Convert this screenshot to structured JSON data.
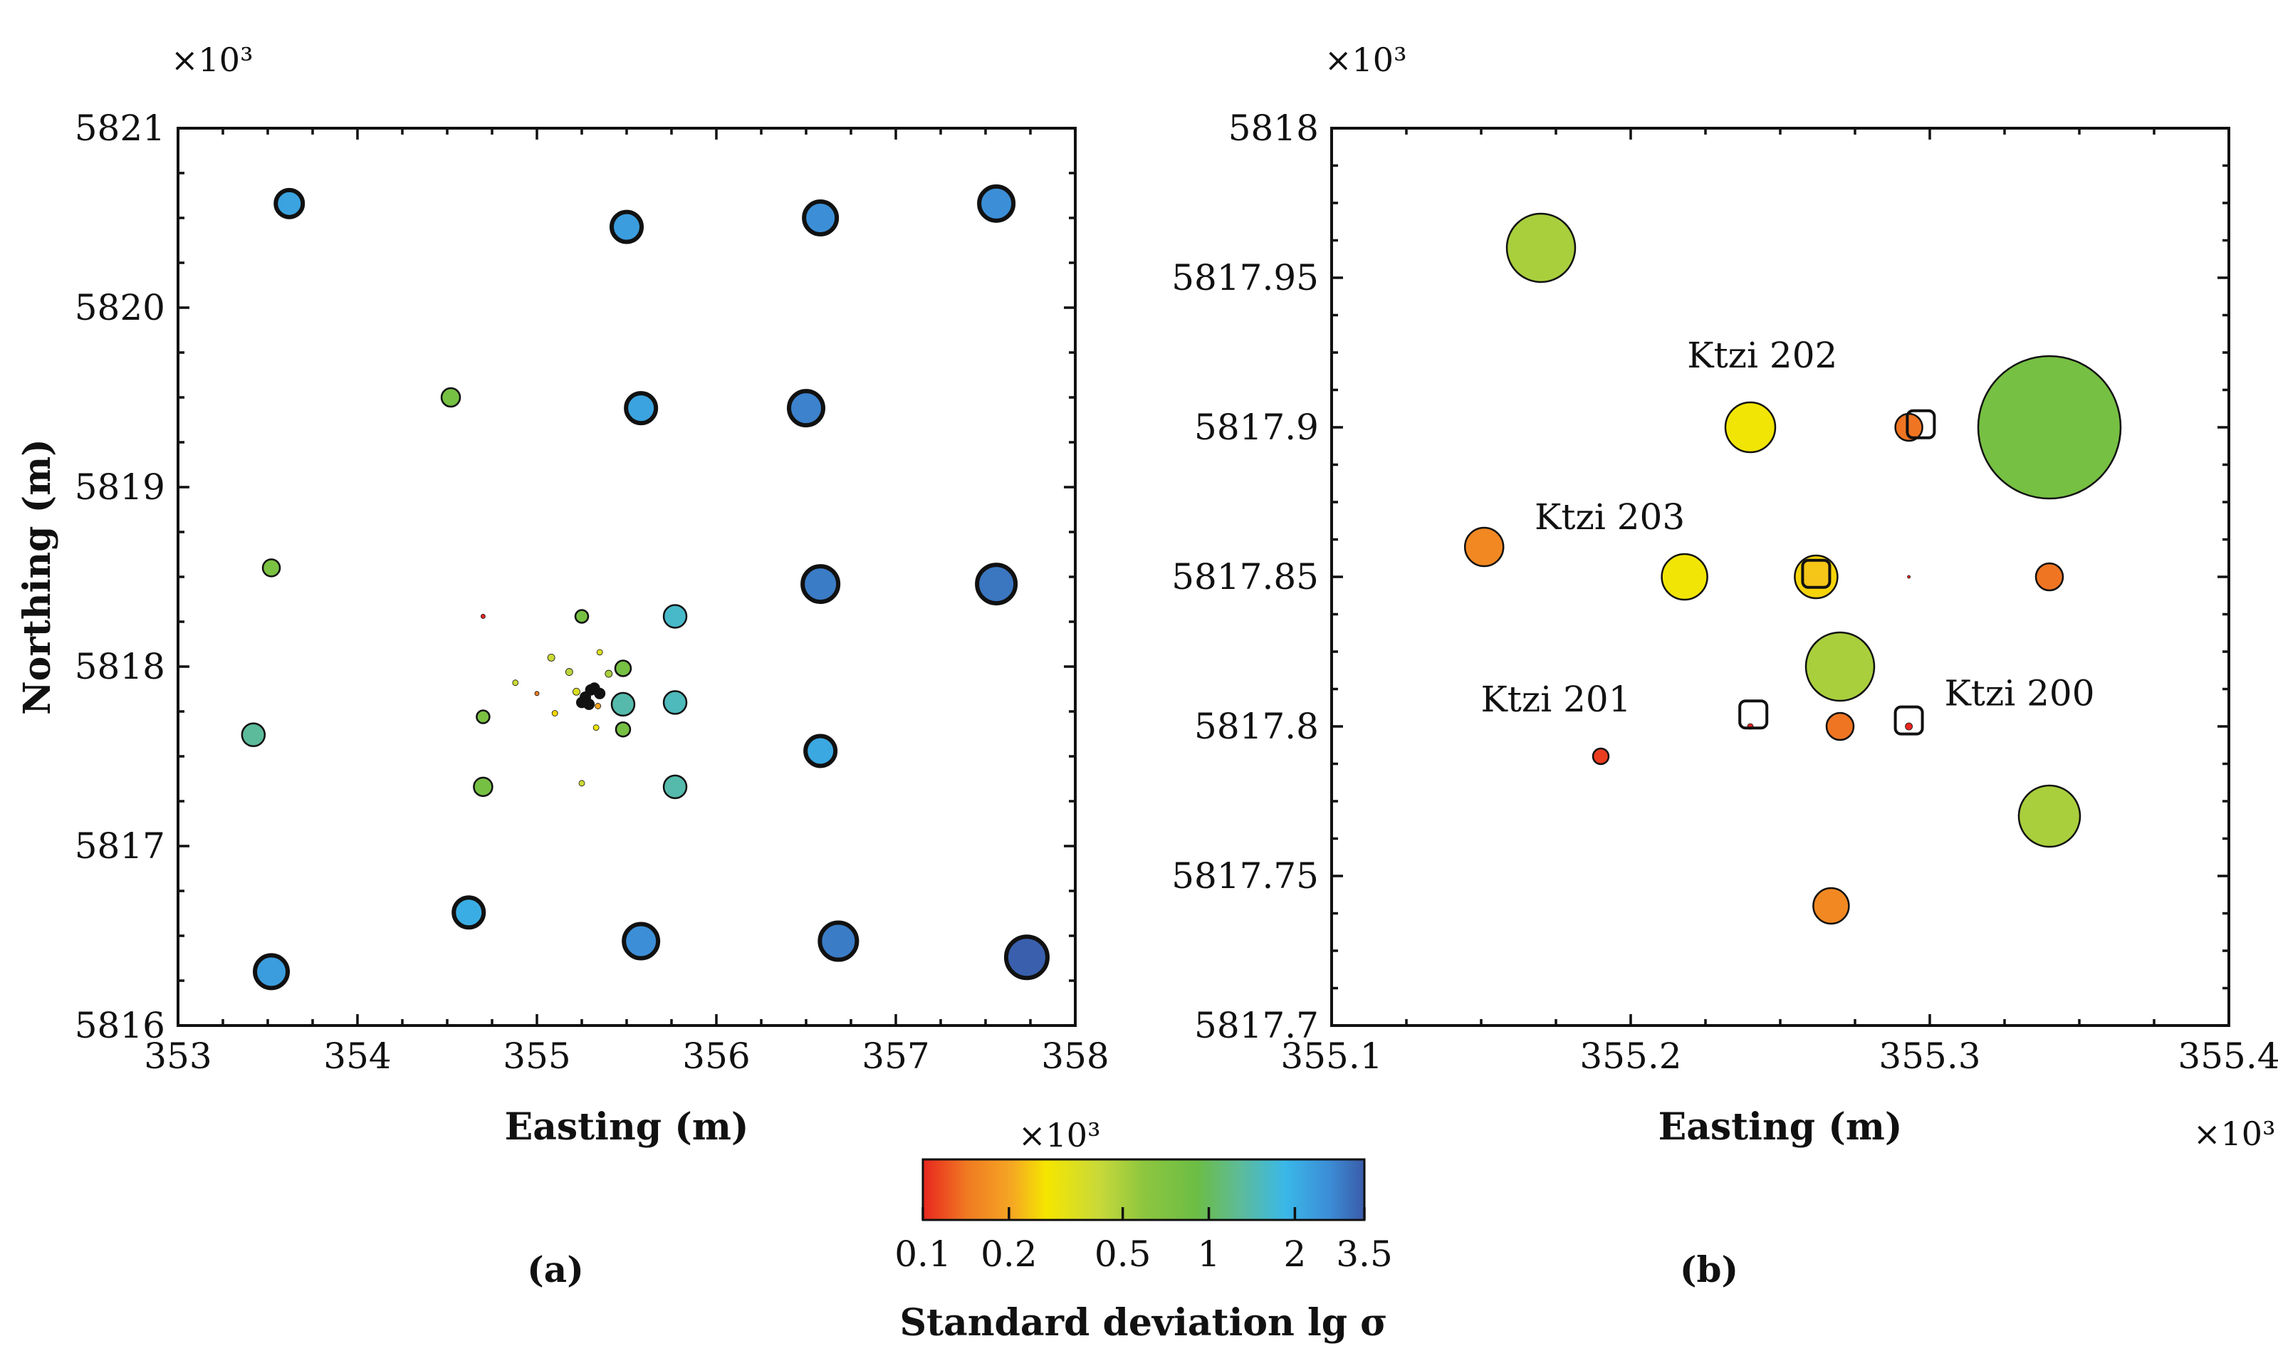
{
  "chart_data": [
    {
      "type": "scatter",
      "panel": "(a)",
      "xlabel": "Easting (m)",
      "ylabel": "Northing (m)",
      "x_multiplier": "×10³",
      "y_multiplier": "×10³",
      "xlim": [
        353,
        358
      ],
      "ylim": [
        5816,
        5821
      ],
      "xticks": [
        353,
        354,
        355,
        356,
        357,
        358
      ],
      "xtick_labels": [
        "353",
        "354",
        "355",
        "356",
        "357",
        "358"
      ],
      "yticks": [
        5816,
        5817,
        5818,
        5819,
        5820,
        5821
      ],
      "ytick_labels": [
        "5816",
        "5817",
        "5818",
        "5819",
        "5820",
        "5821"
      ],
      "points": [
        {
          "x": 353.62,
          "y": 5820.58,
          "sigma": 2.2,
          "r": 19,
          "bold": true
        },
        {
          "x": 355.5,
          "y": 5820.45,
          "sigma": 2.3,
          "r": 21,
          "bold": true
        },
        {
          "x": 356.58,
          "y": 5820.5,
          "sigma": 2.6,
          "r": 23,
          "bold": true
        },
        {
          "x": 357.56,
          "y": 5820.58,
          "sigma": 2.6,
          "r": 24,
          "bold": true
        },
        {
          "x": 354.52,
          "y": 5819.5,
          "sigma": 0.8,
          "r": 13,
          "bold": false
        },
        {
          "x": 355.58,
          "y": 5819.44,
          "sigma": 2.2,
          "r": 21,
          "bold": true
        },
        {
          "x": 356.5,
          "y": 5819.44,
          "sigma": 2.8,
          "r": 24,
          "bold": true
        },
        {
          "x": 353.52,
          "y": 5818.55,
          "sigma": 0.75,
          "r": 12,
          "bold": false
        },
        {
          "x": 356.58,
          "y": 5818.46,
          "sigma": 2.9,
          "r": 25,
          "bold": true
        },
        {
          "x": 357.56,
          "y": 5818.46,
          "sigma": 3.0,
          "r": 27,
          "bold": true
        },
        {
          "x": 355.25,
          "y": 5818.28,
          "sigma": 0.8,
          "r": 9,
          "bold": false
        },
        {
          "x": 355.77,
          "y": 5818.28,
          "sigma": 1.6,
          "r": 16,
          "bold": false
        },
        {
          "x": 355.48,
          "y": 5817.99,
          "sigma": 0.8,
          "r": 11,
          "bold": false
        },
        {
          "x": 355.48,
          "y": 5817.79,
          "sigma": 1.4,
          "r": 16,
          "bold": false
        },
        {
          "x": 355.77,
          "y": 5817.8,
          "sigma": 1.5,
          "r": 16,
          "bold": false
        },
        {
          "x": 355.48,
          "y": 5817.65,
          "sigma": 0.8,
          "r": 10,
          "bold": false
        },
        {
          "x": 354.7,
          "y": 5817.72,
          "sigma": 0.75,
          "r": 9,
          "bold": false
        },
        {
          "x": 353.42,
          "y": 5817.62,
          "sigma": 1.3,
          "r": 16,
          "bold": false
        },
        {
          "x": 354.7,
          "y": 5817.33,
          "sigma": 0.8,
          "r": 13,
          "bold": false
        },
        {
          "x": 355.77,
          "y": 5817.33,
          "sigma": 1.4,
          "r": 16,
          "bold": false
        },
        {
          "x": 356.58,
          "y": 5817.53,
          "sigma": 2.1,
          "r": 21,
          "bold": true
        },
        {
          "x": 354.62,
          "y": 5816.63,
          "sigma": 2.0,
          "r": 21,
          "bold": true
        },
        {
          "x": 355.58,
          "y": 5816.47,
          "sigma": 2.6,
          "r": 24,
          "bold": true
        },
        {
          "x": 356.68,
          "y": 5816.47,
          "sigma": 2.9,
          "r": 26,
          "bold": true
        },
        {
          "x": 357.73,
          "y": 5816.38,
          "sigma": 3.4,
          "r": 29,
          "bold": true
        },
        {
          "x": 353.52,
          "y": 5816.3,
          "sigma": 2.3,
          "r": 23,
          "bold": true
        },
        {
          "x": 355.08,
          "y": 5818.05,
          "sigma": 0.4,
          "r": 5,
          "bold": false
        },
        {
          "x": 355.18,
          "y": 5817.97,
          "sigma": 0.45,
          "r": 5,
          "bold": false
        },
        {
          "x": 355.35,
          "y": 5818.08,
          "sigma": 0.35,
          "r": 4,
          "bold": false
        },
        {
          "x": 354.88,
          "y": 5817.91,
          "sigma": 0.4,
          "r": 4,
          "bold": false
        },
        {
          "x": 355.4,
          "y": 5817.96,
          "sigma": 0.5,
          "r": 5,
          "bold": false
        },
        {
          "x": 355.25,
          "y": 5817.35,
          "sigma": 0.4,
          "r": 4,
          "bold": false
        },
        {
          "x": 355.1,
          "y": 5817.74,
          "sigma": 0.25,
          "r": 4,
          "bold": false
        },
        {
          "x": 355.33,
          "y": 5817.66,
          "sigma": 0.3,
          "r": 4,
          "bold": false
        },
        {
          "x": 355.22,
          "y": 5817.86,
          "sigma": 0.35,
          "r": 5,
          "bold": false
        },
        {
          "x": 355.34,
          "y": 5817.78,
          "sigma": 0.2,
          "r": 4,
          "bold": false
        },
        {
          "x": 354.7,
          "y": 5818.28,
          "sigma": 0.1,
          "r": 3,
          "bold": false
        },
        {
          "x": 355.0,
          "y": 5817.85,
          "sigma": 0.15,
          "r": 3,
          "bold": false
        }
      ],
      "cluster_markers": [
        {
          "x": 355.25,
          "y": 5817.8
        },
        {
          "x": 355.3,
          "y": 5817.87
        },
        {
          "x": 355.32,
          "y": 5817.88
        },
        {
          "x": 355.27,
          "y": 5817.83
        },
        {
          "x": 355.29,
          "y": 5817.79
        },
        {
          "x": 355.35,
          "y": 5817.85
        }
      ]
    },
    {
      "type": "scatter",
      "panel": "(b)",
      "xlabel": "Easting (m)",
      "ylabel": "",
      "x_multiplier": "×10³",
      "y_multiplier": "×10³",
      "xlim": [
        355.1,
        355.4
      ],
      "ylim": [
        5817.7,
        5818
      ],
      "xticks": [
        355.1,
        355.2,
        355.3,
        355.4
      ],
      "xtick_labels": [
        "355.1",
        "355.2",
        "355.3",
        "355.4"
      ],
      "yticks": [
        5817.7,
        5817.75,
        5817.8,
        5817.85,
        5817.9,
        5817.95,
        5818
      ],
      "ytick_labels": [
        "5817.7",
        "5817.75",
        "5817.8",
        "5817.85",
        "5817.9",
        "5817.95",
        "5818"
      ],
      "points": [
        {
          "x": 355.17,
          "y": 5817.96,
          "sigma": 0.5,
          "r": 48
        },
        {
          "x": 355.24,
          "y": 5817.9,
          "sigma": 0.28,
          "r": 35
        },
        {
          "x": 355.293,
          "y": 5817.9,
          "sigma": 0.14,
          "r": 19
        },
        {
          "x": 355.34,
          "y": 5817.9,
          "sigma": 0.8,
          "r": 100
        },
        {
          "x": 355.151,
          "y": 5817.86,
          "sigma": 0.16,
          "r": 27
        },
        {
          "x": 355.218,
          "y": 5817.85,
          "sigma": 0.28,
          "r": 32
        },
        {
          "x": 355.262,
          "y": 5817.85,
          "sigma": 0.25,
          "r": 30
        },
        {
          "x": 355.34,
          "y": 5817.85,
          "sigma": 0.14,
          "r": 19
        },
        {
          "x": 355.27,
          "y": 5817.82,
          "sigma": 0.5,
          "r": 48
        },
        {
          "x": 355.27,
          "y": 5817.8,
          "sigma": 0.14,
          "r": 19
        },
        {
          "x": 355.19,
          "y": 5817.79,
          "sigma": 0.11,
          "r": 11
        },
        {
          "x": 355.34,
          "y": 5817.77,
          "sigma": 0.5,
          "r": 43
        },
        {
          "x": 355.267,
          "y": 5817.74,
          "sigma": 0.16,
          "r": 25
        },
        {
          "x": 355.24,
          "y": 5817.8,
          "sigma": 0.1,
          "r": 4
        },
        {
          "x": 355.293,
          "y": 5817.8,
          "sigma": 0.1,
          "r": 5
        },
        {
          "x": 355.293,
          "y": 5817.85,
          "sigma": 0.1,
          "r": 2
        }
      ],
      "wells": [
        {
          "x": 355.297,
          "y": 5817.901,
          "fill": "none"
        },
        {
          "x": 355.262,
          "y": 5817.851,
          "fill": "#f5c518"
        },
        {
          "x": 355.241,
          "y": 5817.804,
          "fill": "none"
        },
        {
          "x": 355.293,
          "y": 5817.802,
          "fill": "none"
        }
      ],
      "annotations": [
        {
          "text": "Ktzi 202",
          "x": 355.244,
          "y": 5817.92
        },
        {
          "text": "Ktzi 203",
          "x": 355.193,
          "y": 5817.866
        },
        {
          "text": "Ktzi 201",
          "x": 355.175,
          "y": 5817.805
        },
        {
          "text": "Ktzi 200",
          "x": 355.33,
          "y": 5817.807
        }
      ]
    }
  ],
  "colorbar": {
    "title": "Standard deviation lg σ",
    "multiplier": "×10³",
    "tick_labels": [
      "0.1",
      "0.2",
      "0.5",
      "1",
      "2",
      "3.5"
    ],
    "tick_values": [
      0.1,
      0.2,
      0.5,
      1,
      2,
      3.5
    ],
    "range": [
      0.1,
      3.5
    ],
    "colors": [
      "#e8261f",
      "#f07a22",
      "#f5a623",
      "#f5e600",
      "#c8d93a",
      "#8dc63f",
      "#6cbd45",
      "#5dbb9a",
      "#3ab8e8",
      "#3c8dd6",
      "#3a5ba8"
    ]
  },
  "labels": {
    "a_xmult": "×10³",
    "a_ymult": "×10³",
    "b_ymult": "×10³",
    "b_xmult": "×10³",
    "panel_a": "(a)",
    "panel_b": "(b)",
    "a_xlabel": "Easting (m)",
    "a_ylabel": "Northing (m)",
    "b_xlabel": "Easting (m)",
    "cb_mult": "×10³",
    "cb_title": "Standard deviation lg σ"
  }
}
